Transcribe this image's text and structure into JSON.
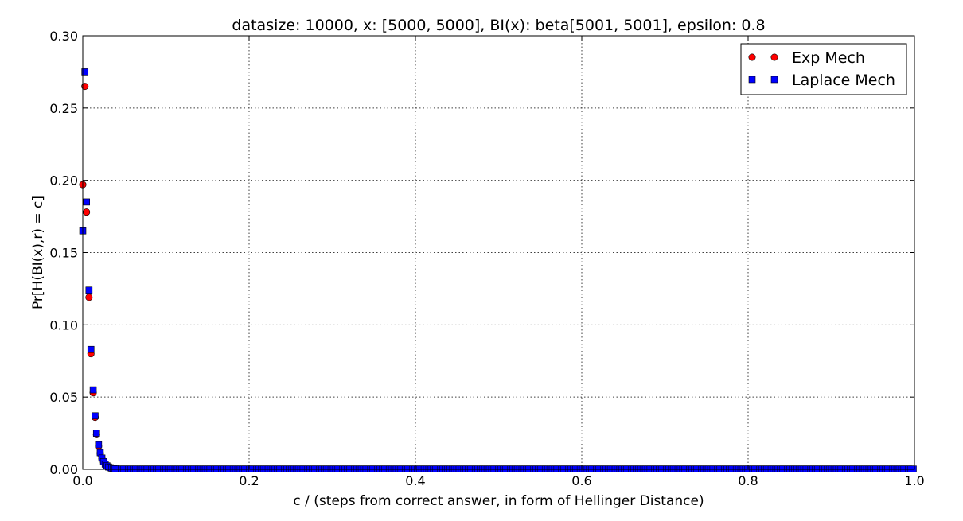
{
  "chart_data": {
    "type": "scatter",
    "title": "datasize: 10000, x: [5000, 5000], BI(x): beta[5001, 5001], epsilon: 0.8",
    "xlabel": "c / (steps from correct answer, in form of Hellinger Distance)",
    "ylabel": "Pr[H(BI(x),r) = c]",
    "xlim": [
      0.0,
      1.0
    ],
    "ylim": [
      0.0,
      0.3
    ],
    "xticks": [
      "0.0",
      "0.2",
      "0.4",
      "0.6",
      "0.8",
      "1.0"
    ],
    "yticks": [
      "0.00",
      "0.05",
      "0.10",
      "0.15",
      "0.20",
      "0.25",
      "0.30"
    ],
    "grid": true,
    "legend_position": "top-right",
    "series": [
      {
        "name": "Exp Mech",
        "marker": "circle",
        "color": "#ff0000",
        "x": [
          0.0,
          0.0026,
          0.0045,
          0.0075,
          0.0098,
          0.0125,
          0.0148,
          0.0165,
          0.019,
          0.021,
          0.023,
          0.025,
          0.027,
          0.029,
          0.031,
          0.033,
          0.035,
          0.037,
          0.039
        ],
        "y": [
          0.197,
          0.265,
          0.178,
          0.119,
          0.08,
          0.053,
          0.036,
          0.024,
          0.016,
          0.011,
          0.0075,
          0.005,
          0.0034,
          0.0023,
          0.0015,
          0.001,
          0.0007,
          0.0005,
          0.0003
        ]
      },
      {
        "name": "Laplace Mech",
        "marker": "square",
        "color": "#0000ff",
        "x": [
          0.0,
          0.0026,
          0.0045,
          0.0075,
          0.0098,
          0.0125,
          0.0148,
          0.0165,
          0.019,
          0.021,
          0.023,
          0.025,
          0.027,
          0.029,
          0.031,
          0.033,
          0.035,
          0.037,
          0.039
        ],
        "y": [
          0.165,
          0.275,
          0.185,
          0.124,
          0.083,
          0.055,
          0.037,
          0.025,
          0.017,
          0.0115,
          0.0078,
          0.0053,
          0.0036,
          0.0024,
          0.0016,
          0.0011,
          0.0008,
          0.0005,
          0.0003
        ]
      }
    ]
  }
}
